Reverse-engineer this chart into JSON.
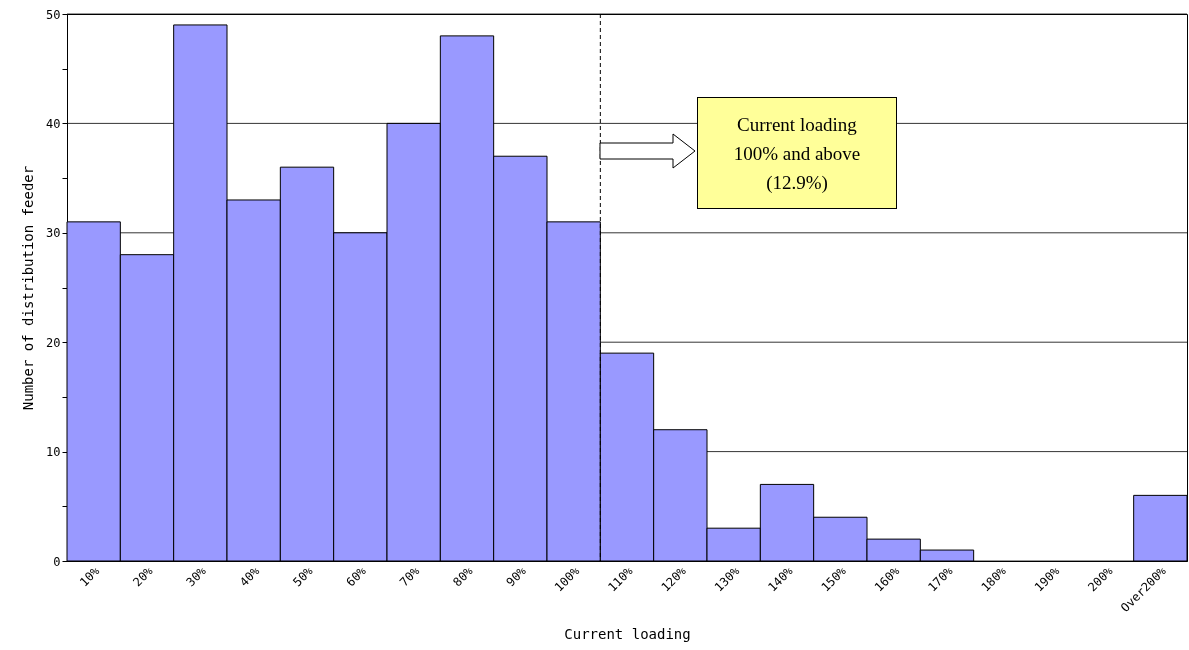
{
  "chart_data": {
    "type": "bar",
    "xlabel": "Current loading",
    "ylabel": "Number of distribution feeder",
    "categories": [
      "10%",
      "20%",
      "30%",
      "40%",
      "50%",
      "60%",
      "70%",
      "80%",
      "90%",
      "100%",
      "110%",
      "120%",
      "130%",
      "140%",
      "150%",
      "160%",
      "170%",
      "180%",
      "190%",
      "200%",
      "Over200%"
    ],
    "values": [
      31,
      28,
      49,
      33,
      36,
      30,
      40,
      48,
      37,
      31,
      19,
      12,
      3,
      7,
      4,
      2,
      1,
      0,
      0,
      0,
      6
    ],
    "color": "#9999ff",
    "ylim": [
      0,
      50
    ],
    "yticks": [
      0,
      {
        "value": 5,
        "label": null
      },
      10,
      {
        "value": 15,
        "label": null
      },
      20,
      {
        "value": 25,
        "label": null
      },
      30,
      {
        "value": 35,
        "label": null
      },
      40,
      {
        "value": 45,
        "label": null
      },
      50
    ],
    "grid": "y",
    "ref_lines": [
      {
        "axis": "x",
        "value": "100%",
        "line_style": "dashed"
      }
    ],
    "annotations": [
      "Current loading\n100% and above\n(12.9%)"
    ]
  }
}
